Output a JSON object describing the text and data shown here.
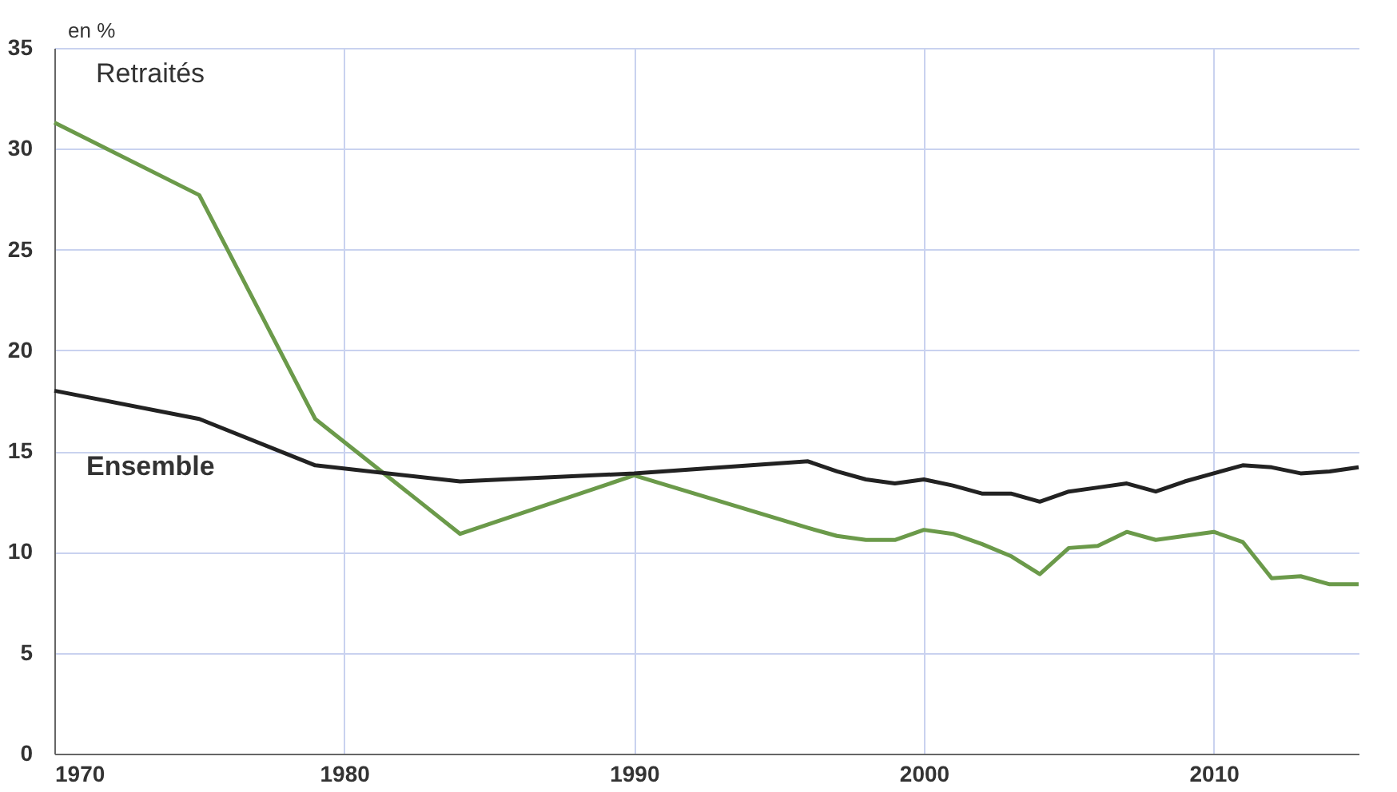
{
  "chart_data": {
    "type": "line",
    "ylabel": "en %",
    "x": [
      1970,
      1975,
      1979,
      1984,
      1990,
      1996,
      1997,
      1998,
      1999,
      2000,
      2001,
      2002,
      2003,
      2004,
      2005,
      2006,
      2007,
      2008,
      2009,
      2010,
      2011,
      2012,
      2013,
      2014,
      2015
    ],
    "series": [
      {
        "name": "Retraités",
        "color": "#6b9a4a",
        "values": [
          31.3,
          27.7,
          16.6,
          10.9,
          13.8,
          11.2,
          10.8,
          10.6,
          10.6,
          11.1,
          10.9,
          10.4,
          9.8,
          8.9,
          10.2,
          10.3,
          11.0,
          10.6,
          10.8,
          11.0,
          10.5,
          8.7,
          8.8,
          8.4,
          8.4
        ]
      },
      {
        "name": "Ensemble",
        "color": "#222222",
        "values": [
          18.0,
          16.6,
          14.3,
          13.5,
          13.9,
          14.5,
          14.0,
          13.6,
          13.4,
          13.6,
          13.3,
          12.9,
          12.9,
          12.5,
          13.0,
          13.2,
          13.4,
          13.0,
          13.5,
          13.9,
          14.3,
          14.2,
          13.9,
          14.0,
          14.2
        ]
      }
    ],
    "xlim": [
      1970,
      2015
    ],
    "xticks": [
      1970,
      1980,
      1990,
      2000,
      2010
    ],
    "ylim": [
      0,
      35
    ],
    "yticks": [
      0,
      5,
      10,
      15,
      20,
      25,
      30,
      35
    ],
    "grid": true,
    "legend": false
  }
}
